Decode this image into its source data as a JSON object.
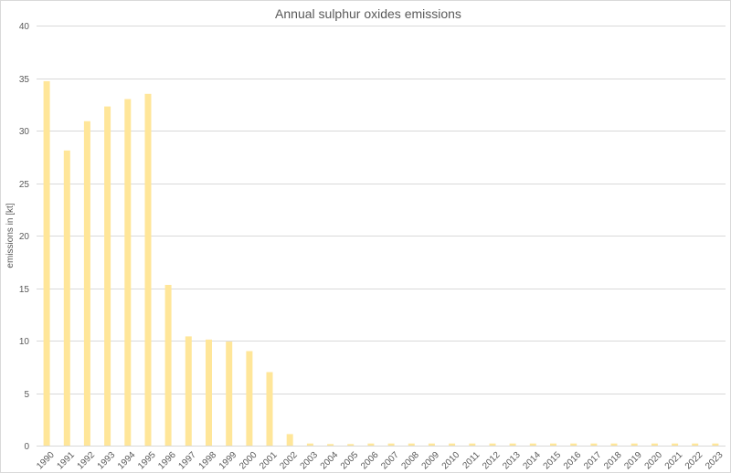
{
  "chart_data": {
    "type": "bar",
    "title": "Annual sulphur oxides emissions",
    "xlabel": "",
    "ylabel": "emissions in [kt]",
    "ylim": [
      0,
      40
    ],
    "yticks": [
      0,
      5,
      10,
      15,
      20,
      25,
      30,
      35,
      40
    ],
    "grid": true,
    "legend": "none",
    "bar_color": "#ffe699",
    "categories": [
      "1990",
      "1991",
      "1992",
      "1993",
      "1994",
      "1995",
      "1996",
      "1997",
      "1998",
      "1999",
      "2000",
      "2001",
      "2002",
      "2003",
      "2004",
      "2005",
      "2006",
      "2007",
      "2008",
      "2009",
      "2010",
      "2011",
      "2012",
      "2013",
      "2014",
      "2015",
      "2016",
      "2017",
      "2018",
      "2019",
      "2020",
      "2021",
      "2022",
      "2023"
    ],
    "values": [
      34.7,
      28.1,
      30.9,
      32.3,
      33.0,
      33.5,
      15.3,
      10.4,
      10.1,
      9.9,
      9.0,
      7.0,
      1.1,
      0.2,
      0.15,
      0.15,
      0.2,
      0.2,
      0.2,
      0.2,
      0.2,
      0.2,
      0.2,
      0.2,
      0.2,
      0.2,
      0.2,
      0.2,
      0.2,
      0.2,
      0.2,
      0.2,
      0.2,
      0.2
    ]
  }
}
